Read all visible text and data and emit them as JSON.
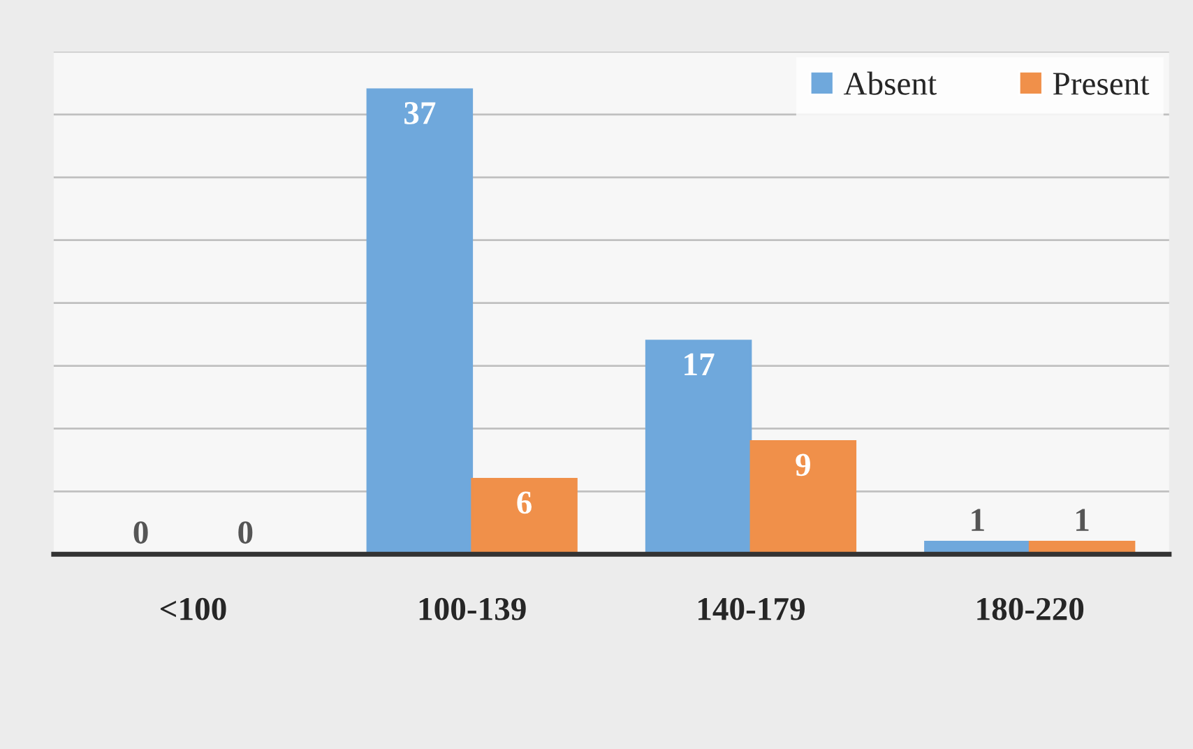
{
  "chart_data": {
    "type": "bar",
    "categories": [
      "<100",
      "100-139",
      "140-179",
      "180-220"
    ],
    "series": [
      {
        "name": "Absent",
        "color": "#6fa8dc",
        "values": [
          0,
          37,
          17,
          1
        ]
      },
      {
        "name": "Present",
        "color": "#f0904a",
        "values": [
          0,
          6,
          9,
          1
        ]
      }
    ],
    "ylim": [
      0,
      40
    ],
    "yticks": [
      {
        "value": 0,
        "label": null
      },
      {
        "value": 5,
        "label": null
      },
      {
        "value": 10,
        "label": null
      },
      {
        "value": 15,
        "label": null
      },
      {
        "value": 20,
        "label": null
      },
      {
        "value": 25,
        "label": null
      },
      {
        "value": 30,
        "label": null
      },
      {
        "value": 35,
        "label": null
      },
      {
        "value": 40,
        "label": null
      }
    ],
    "tick_labels": "x",
    "grid": "y",
    "legend": "top right",
    "data_labels": true
  }
}
